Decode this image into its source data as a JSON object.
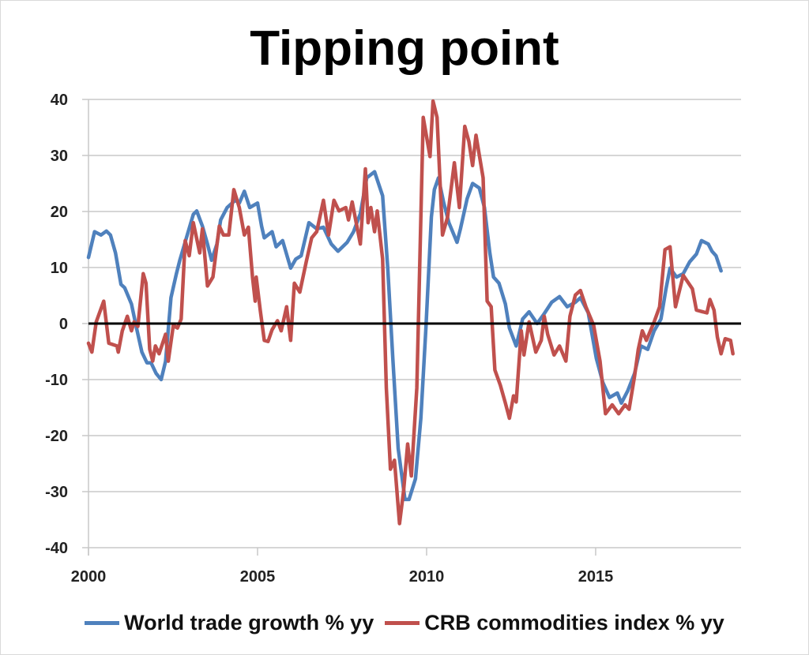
{
  "chart_data": {
    "type": "line",
    "title": "Tipping point",
    "xlabel": "",
    "ylabel": "",
    "xlim": [
      2000,
      2019.3
    ],
    "ylim": [
      -40,
      40
    ],
    "x_ticks": [
      "2000",
      "2005",
      "2010",
      "2015"
    ],
    "x_tick_values": [
      2000,
      2005,
      2010,
      2015
    ],
    "y_ticks": [
      "40",
      "30",
      "20",
      "10",
      "0",
      "-10",
      "-20",
      "-30",
      "-40"
    ],
    "y_tick_values": [
      40,
      30,
      20,
      10,
      0,
      -10,
      -20,
      -30,
      -40
    ],
    "grid": "horizontal",
    "zero_line": true,
    "legend_position": "bottom",
    "series": [
      {
        "name": "World trade growth % yy",
        "color": "#4F81BD",
        "x": [
          2000.0,
          2000.18,
          2000.37,
          2000.53,
          2000.65,
          2000.8,
          2000.96,
          2001.07,
          2001.27,
          2001.42,
          2001.58,
          2001.73,
          2001.85,
          2002.0,
          2002.15,
          2002.28,
          2002.44,
          2002.6,
          2002.7,
          2003.1,
          2003.2,
          2003.37,
          2003.52,
          2003.64,
          2003.8,
          2003.91,
          2004.1,
          2004.34,
          2004.46,
          2004.61,
          2004.77,
          2005.0,
          2005.12,
          2005.2,
          2005.43,
          2005.55,
          2005.74,
          2005.98,
          2006.13,
          2006.29,
          2006.52,
          2006.75,
          2006.95,
          2007.18,
          2007.38,
          2007.65,
          2007.84,
          2008.04,
          2008.23,
          2008.46,
          2008.7,
          2008.85,
          2009.0,
          2009.16,
          2009.36,
          2009.48,
          2009.67,
          2009.83,
          2009.98,
          2010.14,
          2010.23,
          2010.35,
          2010.5,
          2010.66,
          2010.9,
          2011.0,
          2011.2,
          2011.36,
          2011.56,
          2011.71,
          2011.87,
          2011.98,
          2012.14,
          2012.33,
          2012.45,
          2012.65,
          2012.84,
          2013.03,
          2013.27,
          2013.46,
          2013.7,
          2013.93,
          2014.16,
          2014.4,
          2014.55,
          2014.78,
          2015.02,
          2015.21,
          2015.41,
          2015.64,
          2015.76,
          2015.95,
          2016.15,
          2016.34,
          2016.54,
          2016.73,
          2016.93,
          2017.08,
          2017.2,
          2017.39,
          2017.59,
          2017.78,
          2017.98,
          2018.13,
          2018.33,
          2018.44,
          2018.56,
          2018.71
        ],
        "values": [
          11.8,
          16.4,
          15.8,
          16.5,
          15.8,
          12.6,
          7,
          6.4,
          3.5,
          -0.8,
          -5.1,
          -7,
          -7,
          -8.9,
          -10,
          -6.7,
          4.6,
          8.9,
          11.3,
          19.5,
          20.1,
          17.4,
          14.2,
          11.3,
          14.2,
          18.5,
          20.7,
          22,
          21.5,
          23.6,
          20.7,
          21.5,
          17.4,
          15.3,
          16.4,
          13.7,
          14.8,
          9.9,
          11.5,
          12.1,
          18,
          16.9,
          17.2,
          14.2,
          12.9,
          14.5,
          16.4,
          19.6,
          26,
          27.1,
          22.8,
          9.9,
          -6.2,
          -22.3,
          -31.4,
          -31.4,
          -27.7,
          -16.9,
          -0.8,
          19,
          23.9,
          26,
          21.7,
          18,
          14.5,
          16.9,
          22.3,
          25,
          24.2,
          20.7,
          12.6,
          8.3,
          7.2,
          3.5,
          -0.8,
          -4,
          0.8,
          2.1,
          0,
          1.6,
          3.8,
          4.8,
          3,
          3.8,
          4.6,
          1.9,
          -6.2,
          -10.5,
          -13.2,
          -12.4,
          -14.2,
          -12,
          -8.9,
          -4,
          -4.6,
          -1.3,
          0.8,
          6.2,
          9.9,
          8.3,
          8.9,
          11,
          12.4,
          14.8,
          14.2,
          12.9,
          12.1,
          9.4
        ]
      },
      {
        "name": "CRB commodities index % yy",
        "color": "#C0504D",
        "x": [
          2000.0,
          2000.1,
          2000.23,
          2000.45,
          2000.6,
          2000.84,
          2000.88,
          2001.0,
          2001.15,
          2001.27,
          2001.35,
          2001.46,
          2001.62,
          2001.7,
          2001.81,
          2001.9,
          2001.98,
          2002.09,
          2002.28,
          2002.36,
          2002.51,
          2002.63,
          2002.74,
          2002.86,
          2002.98,
          2003.1,
          2003.29,
          2003.37,
          2003.52,
          2003.68,
          2003.87,
          2003.99,
          2004.15,
          2004.3,
          2004.46,
          2004.61,
          2004.73,
          2004.85,
          2004.93,
          2004.96,
          2005.08,
          2005.2,
          2005.31,
          2005.43,
          2005.59,
          2005.7,
          2005.86,
          2005.98,
          2006.09,
          2006.25,
          2006.44,
          2006.6,
          2006.75,
          2006.95,
          2007.1,
          2007.26,
          2007.41,
          2007.61,
          2007.69,
          2007.8,
          2008.04,
          2008.19,
          2008.27,
          2008.35,
          2008.46,
          2008.54,
          2008.7,
          2008.81,
          2008.93,
          2009.05,
          2009.2,
          2009.32,
          2009.44,
          2009.55,
          2009.71,
          2009.9,
          2010.1,
          2010.19,
          2010.31,
          2010.47,
          2010.62,
          2010.82,
          2010.97,
          2011.13,
          2011.25,
          2011.36,
          2011.46,
          2011.67,
          2011.79,
          2011.91,
          2012.02,
          2012.18,
          2012.33,
          2012.45,
          2012.57,
          2012.65,
          2012.8,
          2012.88,
          2013.03,
          2013.23,
          2013.39,
          2013.48,
          2013.58,
          2013.77,
          2013.93,
          2014.12,
          2014.24,
          2014.4,
          2014.55,
          2014.71,
          2014.94,
          2015.13,
          2015.29,
          2015.49,
          2015.68,
          2015.87,
          2015.99,
          2016.15,
          2016.26,
          2016.38,
          2016.5,
          2016.73,
          2016.89,
          2017.05,
          2017.2,
          2017.36,
          2017.59,
          2017.86,
          2017.98,
          2018.29,
          2018.38,
          2018.5,
          2018.6,
          2018.71,
          2018.83,
          2018.99,
          2019.06
        ],
        "values": [
          -3.5,
          -5.1,
          0.3,
          4,
          -3.5,
          -4,
          -5.1,
          -1.3,
          1.3,
          -1.3,
          0.3,
          -0.5,
          8.9,
          7.2,
          -4.6,
          -6.7,
          -4,
          -5.4,
          -1.9,
          -6.7,
          -0.3,
          -0.8,
          0.8,
          14.8,
          12.1,
          18,
          12.6,
          16.9,
          6.7,
          8.3,
          17.4,
          15.8,
          15.8,
          23.9,
          20.7,
          15.8,
          17.2,
          8.3,
          4,
          8.3,
          2.4,
          -3,
          -3.2,
          -1.1,
          0.5,
          -1.3,
          3,
          -3,
          7.2,
          5.6,
          11,
          15.3,
          16.4,
          22,
          15.8,
          22,
          20.1,
          20.7,
          18.5,
          21.7,
          14.2,
          27.6,
          18,
          20.7,
          16.4,
          20.1,
          11.5,
          -11.5,
          -26,
          -24.4,
          -35.7,
          -29.8,
          -21.5,
          -27.2,
          -11.5,
          36.8,
          29.8,
          39.7,
          36.8,
          15.8,
          19,
          28.7,
          20.7,
          35.2,
          32.5,
          28.2,
          33.6,
          26,
          4,
          3,
          -8.3,
          -11,
          -14.2,
          -16.9,
          -12.9,
          -14,
          -1.3,
          -5.6,
          0.3,
          -5.1,
          -3,
          1.3,
          -1.9,
          -5.6,
          -4,
          -6.7,
          1.3,
          5.1,
          5.9,
          3,
          -0.3,
          -6.7,
          -16.1,
          -14.5,
          -16.1,
          -14.5,
          -15.3,
          -9.4,
          -4.6,
          -1.3,
          -3,
          0.3,
          3,
          13.2,
          13.7,
          3,
          8.6,
          6.2,
          2.4,
          1.9,
          4.3,
          2.4,
          -2.4,
          -5.4,
          -2.7,
          -3,
          -5.4
        ]
      }
    ]
  }
}
